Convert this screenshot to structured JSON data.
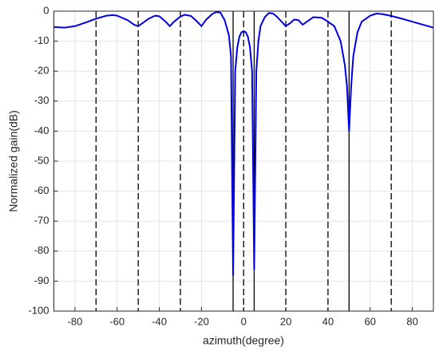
{
  "chart_data": {
    "type": "line",
    "x_label": "azimuth(degree)",
    "y_label": "Normalized gain(dB)",
    "xlim": [
      -90,
      90
    ],
    "ylim": [
      -100,
      0
    ],
    "xticks": [
      -80,
      -60,
      -40,
      -20,
      0,
      20,
      40,
      60,
      80
    ],
    "yticks": [
      -100,
      -90,
      -80,
      -70,
      -60,
      -50,
      -40,
      -30,
      -20,
      -10,
      0
    ],
    "grid": true,
    "x": [
      -90,
      -85,
      -80,
      -75,
      -70,
      -65,
      -62,
      -60,
      -55,
      -52,
      -50,
      -48,
      -45,
      -42,
      -40,
      -37,
      -35,
      -33,
      -30,
      -28,
      -25,
      -22,
      -20,
      -18,
      -15,
      -13,
      -11,
      -9,
      -7,
      -6,
      -5,
      -4,
      -3,
      -2,
      -1,
      0,
      1,
      2,
      3,
      4,
      5,
      6,
      7,
      8,
      10,
      12,
      14,
      16,
      18,
      20,
      22,
      24,
      26,
      28,
      30,
      33,
      37,
      40,
      43,
      46,
      48,
      49,
      50,
      51,
      52,
      54,
      56,
      60,
      63,
      66,
      70,
      75,
      80,
      85,
      90
    ],
    "series": [
      {
        "color": "#0000e6",
        "values": [
          -5.3,
          -5.5,
          -5,
          -3.8,
          -2.5,
          -1.5,
          -1.3,
          -1.5,
          -3,
          -4.5,
          -5,
          -4,
          -2.5,
          -1.5,
          -1.7,
          -3.5,
          -5,
          -3.5,
          -1.8,
          -1.2,
          -1.6,
          -3.5,
          -5,
          -3,
          -1,
          -0.3,
          -0.5,
          -3,
          -8,
          -15,
          -88,
          -20,
          -12,
          -8.5,
          -7,
          -6.7,
          -7,
          -8.5,
          -12,
          -20,
          -86,
          -20,
          -10,
          -5,
          -2,
          -0.6,
          -0.8,
          -2,
          -3.5,
          -5,
          -4,
          -2.8,
          -3,
          -4.5,
          -3.5,
          -2,
          -2.2,
          -3.5,
          -5,
          -10,
          -18,
          -25,
          -40,
          -25,
          -15,
          -7,
          -3.5,
          -1.5,
          -0.8,
          -1,
          -1.6,
          -2.5,
          -3.5,
          -4.5,
          -5.5
        ]
      }
    ],
    "reference_lines": [
      {
        "x": -70,
        "style": "dashed"
      },
      {
        "x": -50,
        "style": "dashed"
      },
      {
        "x": -30,
        "style": "dashed"
      },
      {
        "x": 0,
        "style": "dashed"
      },
      {
        "x": 20,
        "style": "dashed"
      },
      {
        "x": 40,
        "style": "dashed"
      },
      {
        "x": 70,
        "style": "dashed"
      },
      {
        "x": -5,
        "style": "solid"
      },
      {
        "x": 5,
        "style": "solid"
      },
      {
        "x": 50,
        "style": "solid"
      }
    ]
  }
}
